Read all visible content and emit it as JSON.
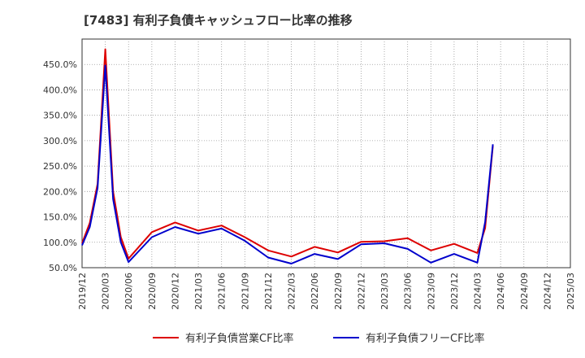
{
  "chart_data": {
    "type": "line",
    "title": "[7483]  有利子負債キャッシュフロー比率の推移",
    "xlabel": "",
    "ylabel": "",
    "ylim": [
      50,
      500
    ],
    "yticks": [
      50,
      100,
      150,
      200,
      250,
      300,
      350,
      400,
      450
    ],
    "ytick_labels": [
      "50.0%",
      "100.0%",
      "150.0%",
      "200.0%",
      "250.0%",
      "300.0%",
      "350.0%",
      "400.0%",
      "450.0%"
    ],
    "xlim": [
      "2019/12",
      "2025/03"
    ],
    "xtick_labels": [
      "2019/12",
      "2020/03",
      "2020/06",
      "2020/09",
      "2020/12",
      "2021/03",
      "2021/06",
      "2021/09",
      "2021/12",
      "2022/03",
      "2022/06",
      "2022/09",
      "2022/12",
      "2023/03",
      "2023/06",
      "2023/09",
      "2023/12",
      "2024/03",
      "2024/06",
      "2024/09",
      "2024/12",
      "2025/03"
    ],
    "grid": true,
    "legend_position": "bottom",
    "series": [
      {
        "name": "有利子負債営業CF比率",
        "color": "#dd0000",
        "points": [
          [
            "2019/12",
            98
          ],
          [
            "2020/01",
            138
          ],
          [
            "2020/02",
            215
          ],
          [
            "2020/03",
            480
          ],
          [
            "2020/04",
            200
          ],
          [
            "2020/05",
            110
          ],
          [
            "2020/06",
            68
          ],
          [
            "2020/09",
            120
          ],
          [
            "2020/12",
            139
          ],
          [
            "2021/03",
            123
          ],
          [
            "2021/06",
            133
          ],
          [
            "2021/09",
            110
          ],
          [
            "2021/12",
            84
          ],
          [
            "2022/03",
            72
          ],
          [
            "2022/06",
            91
          ],
          [
            "2022/09",
            80
          ],
          [
            "2022/12",
            101
          ],
          [
            "2023/03",
            102
          ],
          [
            "2023/06",
            108
          ],
          [
            "2023/09",
            84
          ],
          [
            "2023/12",
            97
          ],
          [
            "2024/03",
            79
          ],
          [
            "2024/04",
            128
          ],
          [
            "2024/05",
            290
          ]
        ]
      },
      {
        "name": "有利子負債フリーCF比率",
        "color": "#0000cc",
        "points": [
          [
            "2019/12",
            94
          ],
          [
            "2020/01",
            130
          ],
          [
            "2020/02",
            207
          ],
          [
            "2020/03",
            448
          ],
          [
            "2020/04",
            185
          ],
          [
            "2020/05",
            100
          ],
          [
            "2020/06",
            61
          ],
          [
            "2020/09",
            110
          ],
          [
            "2020/12",
            130
          ],
          [
            "2021/03",
            117
          ],
          [
            "2021/06",
            127
          ],
          [
            "2021/09",
            103
          ],
          [
            "2021/12",
            70
          ],
          [
            "2022/03",
            58
          ],
          [
            "2022/06",
            77
          ],
          [
            "2022/09",
            67
          ],
          [
            "2022/12",
            96
          ],
          [
            "2023/03",
            98
          ],
          [
            "2023/06",
            87
          ],
          [
            "2023/09",
            60
          ],
          [
            "2023/12",
            77
          ],
          [
            "2024/03",
            60
          ],
          [
            "2024/04",
            140
          ],
          [
            "2024/05",
            293
          ]
        ]
      }
    ]
  }
}
